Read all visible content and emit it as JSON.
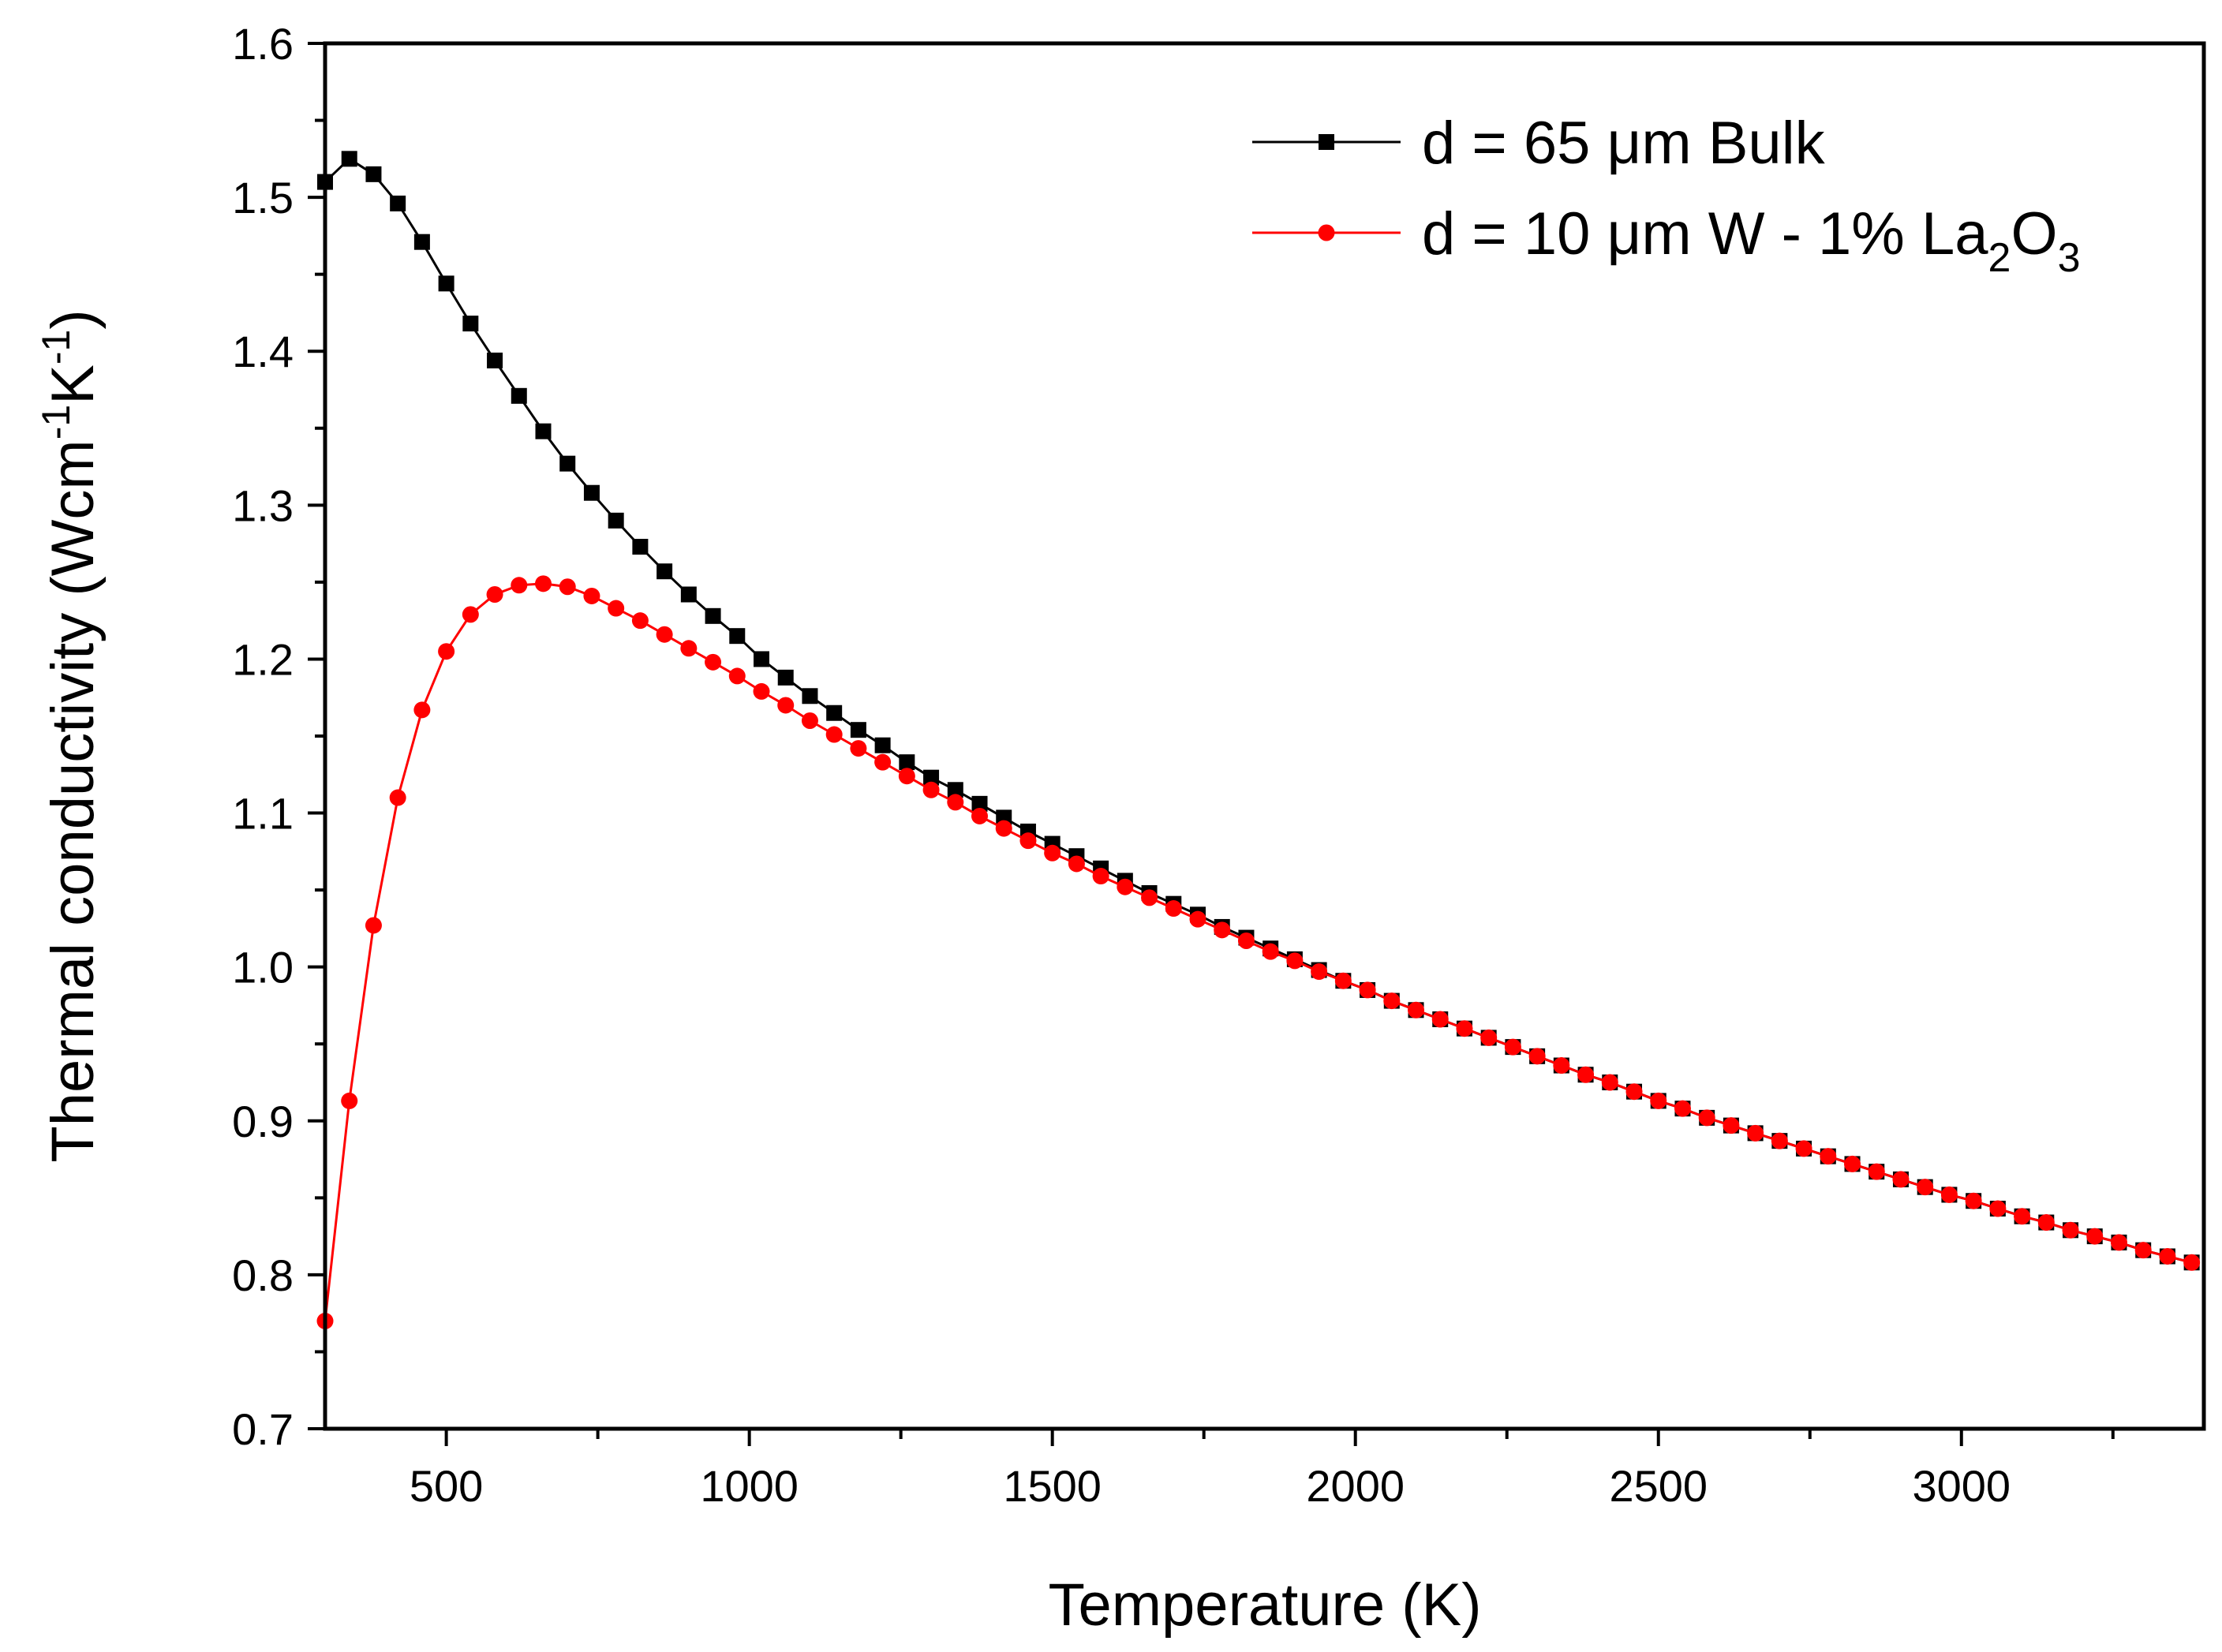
{
  "chart_data": {
    "type": "line",
    "title": "",
    "xlabel": "Temperature (K)",
    "ylabel": {
      "main": "Thermal conductivity (Wcm",
      "exp1": "-1",
      "mid": "K",
      "exp2": "-1",
      "close": ")"
    },
    "xlim": [
      300,
      3400
    ],
    "ylim": [
      0.7,
      1.6
    ],
    "xticks": [
      500,
      1000,
      1500,
      2000,
      2500,
      3000
    ],
    "xtick_labels": [
      "500",
      "1000",
      "1500",
      "2000",
      "2500",
      "3000"
    ],
    "yticks": [
      0.7,
      0.8,
      0.9,
      1.0,
      1.1,
      1.2,
      1.3,
      1.4,
      1.5,
      1.6
    ],
    "ytick_labels": [
      "0.7",
      "0.8",
      "0.9",
      "1.0",
      "1.1",
      "1.2",
      "1.3",
      "1.4",
      "1.5",
      "1.6"
    ],
    "grid": false,
    "legend_position": "top-right",
    "series": [
      {
        "name": "d = 65 μm Bulk",
        "label_parts": [
          "d = 65 μm Bulk"
        ],
        "color": "#000000",
        "marker": "square",
        "x": [
          300,
          340,
          380,
          420,
          460,
          500,
          540,
          580,
          620,
          660,
          700,
          740,
          780,
          820,
          860,
          900,
          940,
          980,
          1020,
          1060,
          1100,
          1140,
          1180,
          1220,
          1260,
          1300,
          1340,
          1380,
          1420,
          1460,
          1500,
          1540,
          1580,
          1620,
          1660,
          1700,
          1740,
          1780,
          1820,
          1860,
          1900,
          1940,
          1980,
          2020,
          2060,
          2100,
          2140,
          2180,
          2220,
          2260,
          2300,
          2340,
          2380,
          2420,
          2460,
          2500,
          2540,
          2580,
          2620,
          2660,
          2700,
          2740,
          2780,
          2820,
          2860,
          2900,
          2940,
          2980,
          3020,
          3060,
          3100,
          3140,
          3180,
          3220,
          3260,
          3300,
          3340,
          3380
        ],
        "y": [
          1.51,
          1.525,
          1.515,
          1.496,
          1.471,
          1.444,
          1.418,
          1.394,
          1.371,
          1.348,
          1.327,
          1.308,
          1.29,
          1.273,
          1.257,
          1.242,
          1.228,
          1.215,
          1.2,
          1.188,
          1.176,
          1.165,
          1.154,
          1.144,
          1.133,
          1.123,
          1.115,
          1.106,
          1.097,
          1.088,
          1.08,
          1.072,
          1.064,
          1.056,
          1.048,
          1.041,
          1.034,
          1.026,
          1.019,
          1.012,
          1.005,
          0.998,
          0.991,
          0.985,
          0.978,
          0.972,
          0.966,
          0.96,
          0.954,
          0.948,
          0.942,
          0.936,
          0.93,
          0.925,
          0.919,
          0.913,
          0.908,
          0.902,
          0.897,
          0.892,
          0.887,
          0.882,
          0.877,
          0.872,
          0.867,
          0.862,
          0.857,
          0.852,
          0.848,
          0.843,
          0.838,
          0.834,
          0.829,
          0.825,
          0.821,
          0.816,
          0.812,
          0.808
        ]
      },
      {
        "name": "d = 10 μm W - 1% La2O3",
        "label_parts": [
          "d = 10 μm W - 1% La",
          "2",
          "O",
          "3"
        ],
        "color": "#ff0000",
        "marker": "circle",
        "x": [
          300,
          340,
          380,
          420,
          460,
          500,
          540,
          580,
          620,
          660,
          700,
          740,
          780,
          820,
          860,
          900,
          940,
          980,
          1020,
          1060,
          1100,
          1140,
          1180,
          1220,
          1260,
          1300,
          1340,
          1380,
          1420,
          1460,
          1500,
          1540,
          1580,
          1620,
          1660,
          1700,
          1740,
          1780,
          1820,
          1860,
          1900,
          1940,
          1980,
          2020,
          2060,
          2100,
          2140,
          2180,
          2220,
          2260,
          2300,
          2340,
          2380,
          2420,
          2460,
          2500,
          2540,
          2580,
          2620,
          2660,
          2700,
          2740,
          2780,
          2820,
          2860,
          2900,
          2940,
          2980,
          3020,
          3060,
          3100,
          3140,
          3180,
          3220,
          3260,
          3300,
          3340,
          3380
        ],
        "y": [
          0.77,
          0.913,
          1.027,
          1.11,
          1.167,
          1.205,
          1.229,
          1.242,
          1.248,
          1.249,
          1.247,
          1.241,
          1.233,
          1.225,
          1.216,
          1.207,
          1.198,
          1.189,
          1.179,
          1.17,
          1.16,
          1.151,
          1.142,
          1.133,
          1.124,
          1.115,
          1.107,
          1.098,
          1.09,
          1.082,
          1.074,
          1.067,
          1.059,
          1.052,
          1.045,
          1.038,
          1.031,
          1.024,
          1.017,
          1.01,
          1.004,
          0.997,
          0.991,
          0.985,
          0.978,
          0.972,
          0.966,
          0.96,
          0.954,
          0.948,
          0.942,
          0.936,
          0.93,
          0.925,
          0.919,
          0.913,
          0.908,
          0.902,
          0.897,
          0.892,
          0.887,
          0.882,
          0.877,
          0.872,
          0.867,
          0.862,
          0.857,
          0.852,
          0.848,
          0.843,
          0.838,
          0.834,
          0.829,
          0.825,
          0.821,
          0.816,
          0.812,
          0.808
        ]
      }
    ]
  }
}
